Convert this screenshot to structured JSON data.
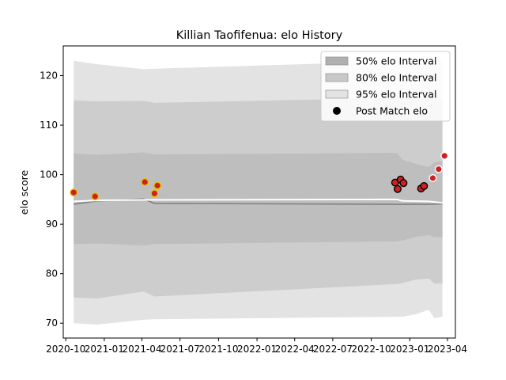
{
  "chart_data": {
    "type": "line",
    "title": "Killian Taofifenua: elo History",
    "xlabel": "",
    "ylabel": "elo score",
    "xlim": [
      "2020-09-25",
      "2023-04-20"
    ],
    "ylim": [
      67,
      126
    ],
    "x_ticks": [
      "2020-10",
      "2021-01",
      "2021-04",
      "2021-07",
      "2021-10",
      "2022-01",
      "2022-04",
      "2022-07",
      "2022-10",
      "2023-01",
      "2023-04"
    ],
    "y_ticks": [
      70,
      80,
      90,
      100,
      110,
      120
    ],
    "grid": false,
    "legend_position": "top-right",
    "legend": [
      {
        "label": "50% elo Interval",
        "kind": "band",
        "color": "#b0b0b0"
      },
      {
        "label": "80% elo Interval",
        "kind": "band",
        "color": "#c8c8c8"
      },
      {
        "label": "95% elo Interval",
        "kind": "band",
        "color": "#e3e3e3"
      },
      {
        "label": "Post Match elo",
        "kind": "marker",
        "color": "#000000"
      }
    ],
    "bands": {
      "dates": [
        "2020-10-20",
        "2020-12-15",
        "2021-04-05",
        "2021-05-01",
        "2022-12-01",
        "2022-12-15",
        "2023-01-15",
        "2023-02-15",
        "2023-03-01",
        "2023-03-20"
      ],
      "p95_upper": [
        123,
        122.3,
        121.3,
        121.4,
        122.9,
        122.9,
        122.9,
        123,
        123,
        123
      ],
      "p80_upper": [
        115,
        114.8,
        114.9,
        114.5,
        115.5,
        115.5,
        115.5,
        115.5,
        115.5,
        115.5
      ],
      "p50_upper": [
        104.3,
        104,
        104.5,
        104.1,
        104.4,
        103,
        102.2,
        101.5,
        102.5,
        102.8
      ],
      "p50_lower": [
        86,
        86.1,
        85.7,
        86,
        86.5,
        86.7,
        87.4,
        87.8,
        87.4,
        87.4
      ],
      "p80_lower": [
        75.2,
        75,
        76.4,
        75.4,
        77.9,
        78.1,
        78.8,
        79,
        78,
        78
      ],
      "p95_lower": [
        70,
        69.7,
        70.7,
        70.8,
        71.3,
        71.3,
        71.8,
        72.7,
        71,
        71.3
      ]
    },
    "series": [
      {
        "role": "mean",
        "color": "#808080",
        "dates": [
          "2020-10-20",
          "2020-12-15",
          "2021-04-05",
          "2021-05-01",
          "2022-12-01",
          "2022-12-15",
          "2023-02-15",
          "2023-03-20"
        ],
        "values": [
          94,
          94.7,
          95.1,
          94.2,
          94.0,
          94.0,
          94.0,
          94.1
        ]
      },
      {
        "role": "median",
        "color": "#ffffff",
        "dates": [
          "2020-10-20",
          "2020-12-15",
          "2021-04-05",
          "2021-05-01",
          "2022-12-01",
          "2022-12-15",
          "2023-02-15",
          "2023-03-20"
        ],
        "values": [
          94.6,
          94.8,
          94.9,
          94.9,
          95.0,
          94.7,
          94.6,
          94.3
        ]
      }
    ],
    "points": [
      {
        "date": "2020-10-20",
        "elo": 96.4,
        "face": "#cc2222",
        "edge": "#e8c400"
      },
      {
        "date": "2020-12-10",
        "elo": 95.6,
        "face": "#cc2222",
        "edge": "#e8c400"
      },
      {
        "date": "2021-04-08",
        "elo": 98.5,
        "face": "#cc2222",
        "edge": "#e8c400"
      },
      {
        "date": "2021-05-01",
        "elo": 96.2,
        "face": "#cc2222",
        "edge": "#e8c400"
      },
      {
        "date": "2021-05-08",
        "elo": 97.8,
        "face": "#cc2222",
        "edge": "#e8c400"
      },
      {
        "date": "2022-11-27",
        "elo": 98.4,
        "face": "#cc2222",
        "edge": "#000000"
      },
      {
        "date": "2022-12-03",
        "elo": 97.1,
        "face": "#cc2222",
        "edge": "#000000"
      },
      {
        "date": "2022-12-10",
        "elo": 99.0,
        "face": "#cc2222",
        "edge": "#000000"
      },
      {
        "date": "2022-12-17",
        "elo": 98.3,
        "face": "#cc2222",
        "edge": "#000000"
      },
      {
        "date": "2023-01-28",
        "elo": 97.2,
        "face": "#cc2222",
        "edge": "#000000"
      },
      {
        "date": "2023-02-04",
        "elo": 97.7,
        "face": "#cc2222",
        "edge": "#000000"
      },
      {
        "date": "2023-02-25",
        "elo": 99.3,
        "face": "#cc2222",
        "edge": "#ffffff"
      },
      {
        "date": "2023-03-11",
        "elo": 101.1,
        "face": "#cc2222",
        "edge": "#ffffff"
      },
      {
        "date": "2023-03-25",
        "elo": 103.8,
        "face": "#cc2222",
        "edge": "#ffffff"
      }
    ]
  }
}
